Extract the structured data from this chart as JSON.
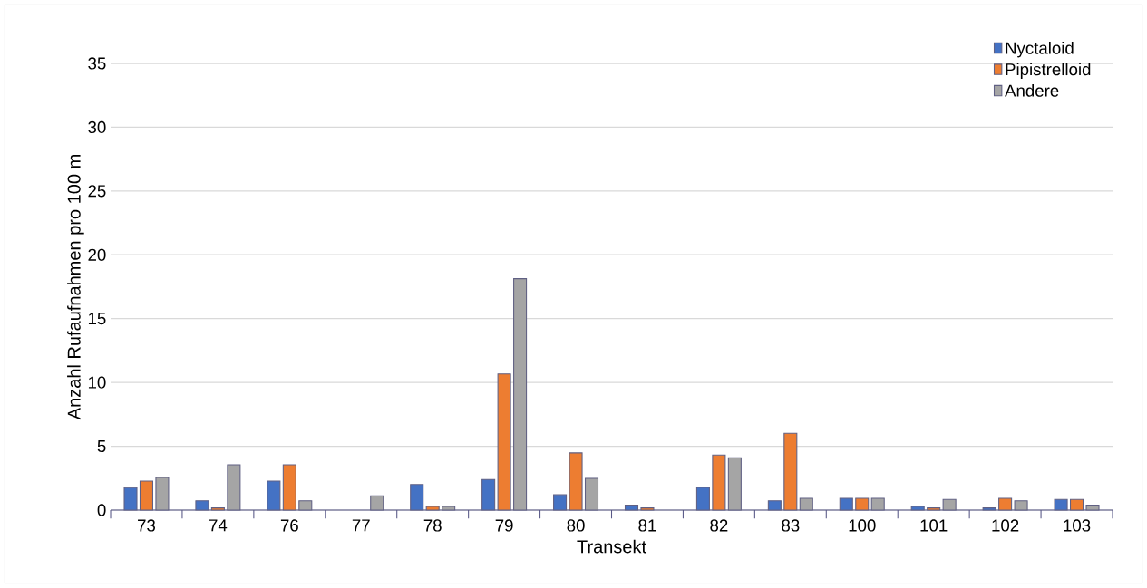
{
  "chart_data": {
    "type": "bar",
    "xlabel": "Transekt",
    "ylabel": "Anzahl Rufaufnahmen pro 100 m",
    "categories": [
      "73",
      "74",
      "76",
      "77",
      "78",
      "79",
      "80",
      "81",
      "82",
      "83",
      "100",
      "101",
      "102",
      "103"
    ],
    "series": [
      {
        "name": "Nyctaloid",
        "color": "#4472c4",
        "values": [
          1.75,
          0.73,
          2.27,
          0,
          2.0,
          2.4,
          1.2,
          0.38,
          1.78,
          0.73,
          0.92,
          0.28,
          0.17,
          0.83
        ]
      },
      {
        "name": "Pipistrelloid",
        "color": "#ed7d31",
        "values": [
          2.27,
          0.17,
          3.55,
          0,
          0.28,
          10.66,
          4.48,
          0.17,
          4.31,
          6.02,
          0.92,
          0.17,
          0.92,
          0.83
        ]
      },
      {
        "name": "Andere",
        "color": "#a5a5a5",
        "values": [
          2.56,
          3.55,
          0.73,
          1.11,
          0.28,
          18.13,
          2.49,
          0,
          4.1,
          0.92,
          0.92,
          0.83,
          0.73,
          0.38
        ]
      }
    ],
    "ylim": [
      0,
      35
    ],
    "yticks": [
      0,
      5,
      10,
      15,
      20,
      25,
      30,
      35
    ],
    "grid": "y",
    "legend": "top right"
  }
}
